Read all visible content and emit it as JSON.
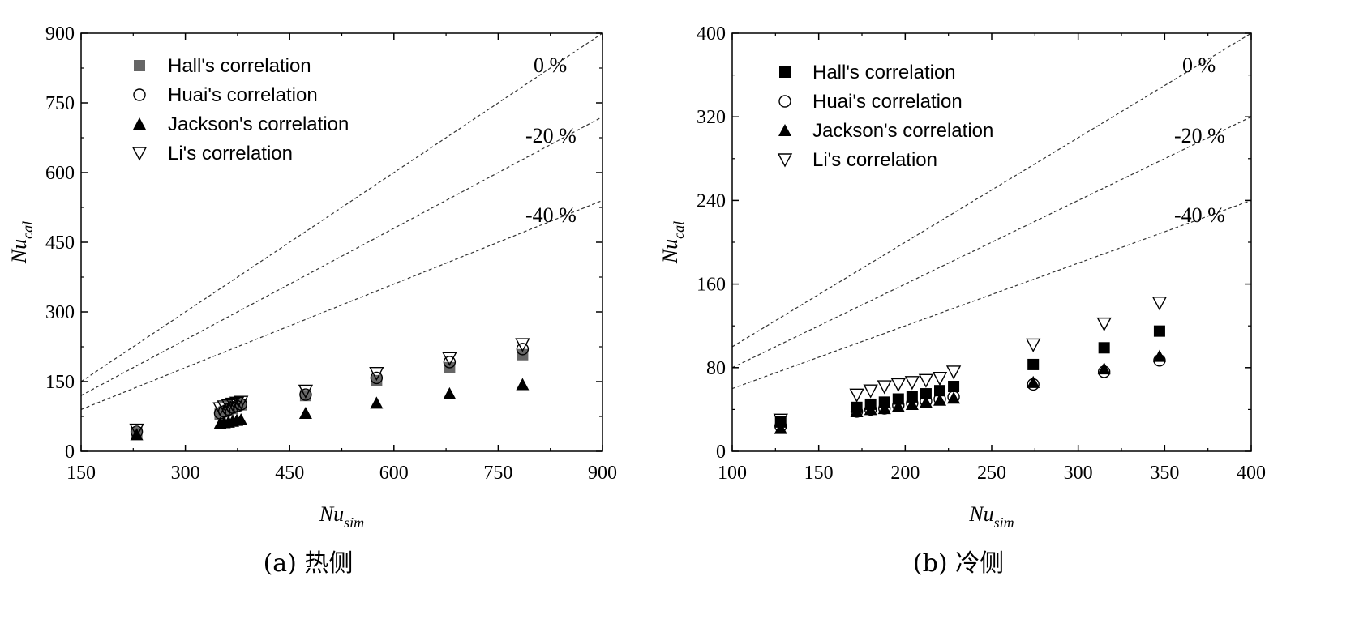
{
  "chart_data": [
    {
      "type": "scatter",
      "caption": "(a) 热侧",
      "xlabel": {
        "main": "Nu",
        "sub": "sim"
      },
      "ylabel": {
        "main": "Nu",
        "sub": "cal"
      },
      "xlim": [
        150,
        900
      ],
      "ylim": [
        0,
        900
      ],
      "xticks": [
        "150",
        "300",
        "450",
        "600",
        "750",
        "900"
      ],
      "yticks": [
        "0",
        "150",
        "300",
        "450",
        "600",
        "750",
        "900"
      ],
      "legend_position": "top-left",
      "reference_lines": [
        {
          "label": "0 %",
          "factor": 1.0
        },
        {
          "label": "-20 %",
          "factor": 0.8
        },
        {
          "label": "-40 %",
          "factor": 0.6
        }
      ],
      "series": [
        {
          "name": "Hall's correlation",
          "marker": "square-filled",
          "color": "#666666",
          "x": [
            230,
            350,
            356,
            362,
            368,
            374,
            380,
            473,
            575,
            680,
            785
          ],
          "y": [
            40,
            80,
            85,
            88,
            92,
            96,
            100,
            120,
            152,
            180,
            208
          ]
        },
        {
          "name": "Huai's correlation",
          "marker": "circle-open",
          "color": "#000000",
          "x": [
            230,
            350,
            356,
            362,
            368,
            374,
            380,
            473,
            575,
            680,
            785
          ],
          "y": [
            42,
            82,
            86,
            90,
            94,
            97,
            101,
            122,
            158,
            192,
            220
          ]
        },
        {
          "name": "Jackson's correlation",
          "marker": "triangle-up-filled",
          "color": "#000000",
          "x": [
            230,
            350,
            356,
            362,
            368,
            374,
            380,
            473,
            575,
            680,
            785
          ],
          "y": [
            36,
            60,
            62,
            63,
            65,
            67,
            68,
            82,
            104,
            124,
            144
          ]
        },
        {
          "name": "Li's correlation",
          "marker": "triangle-down-open",
          "color": "#000000",
          "x": [
            230,
            350,
            356,
            362,
            368,
            374,
            380,
            473,
            575,
            680,
            785
          ],
          "y": [
            46,
            92,
            96,
            99,
            102,
            104,
            106,
            130,
            168,
            200,
            230
          ]
        }
      ]
    },
    {
      "type": "scatter",
      "caption": "(b) 冷侧",
      "xlabel": {
        "main": "Nu",
        "sub": "sim"
      },
      "ylabel": {
        "main": "Nu",
        "sub": "cal"
      },
      "xlim": [
        100,
        400
      ],
      "ylim": [
        0,
        400
      ],
      "xticks": [
        "100",
        "150",
        "200",
        "250",
        "300",
        "350",
        "400"
      ],
      "yticks": [
        "0",
        "80",
        "160",
        "240",
        "320",
        "400"
      ],
      "legend_position": "top-left",
      "reference_lines": [
        {
          "label": "0 %",
          "factor": 1.0
        },
        {
          "label": "-20 %",
          "factor": 0.8
        },
        {
          "label": "-40 %",
          "factor": 0.6
        }
      ],
      "series": [
        {
          "name": "Hall's correlation",
          "marker": "square-filled",
          "color": "#000000",
          "x": [
            128,
            172,
            180,
            188,
            196,
            204,
            212,
            220,
            228,
            274,
            315,
            347
          ],
          "y": [
            28,
            42,
            45,
            47,
            50,
            52,
            55,
            58,
            62,
            83,
            99,
            115
          ]
        },
        {
          "name": "Huai's correlation",
          "marker": "circle-open",
          "color": "#000000",
          "x": [
            128,
            172,
            180,
            188,
            196,
            204,
            212,
            220,
            228,
            274,
            315,
            347
          ],
          "y": [
            24,
            38,
            40,
            41,
            44,
            46,
            48,
            50,
            52,
            64,
            76,
            87
          ]
        },
        {
          "name": "Jackson's correlation",
          "marker": "triangle-up-filled",
          "color": "#000000",
          "x": [
            128,
            172,
            180,
            188,
            196,
            204,
            212,
            220,
            228,
            274,
            315,
            347
          ],
          "y": [
            22,
            38,
            40,
            41,
            43,
            45,
            47,
            49,
            51,
            66,
            79,
            91
          ]
        },
        {
          "name": "Li's correlation",
          "marker": "triangle-down-open",
          "color": "#000000",
          "x": [
            128,
            172,
            180,
            188,
            196,
            204,
            212,
            220,
            228,
            274,
            315,
            347
          ],
          "y": [
            30,
            54,
            58,
            62,
            64,
            66,
            68,
            70,
            76,
            102,
            122,
            142
          ]
        }
      ]
    }
  ]
}
